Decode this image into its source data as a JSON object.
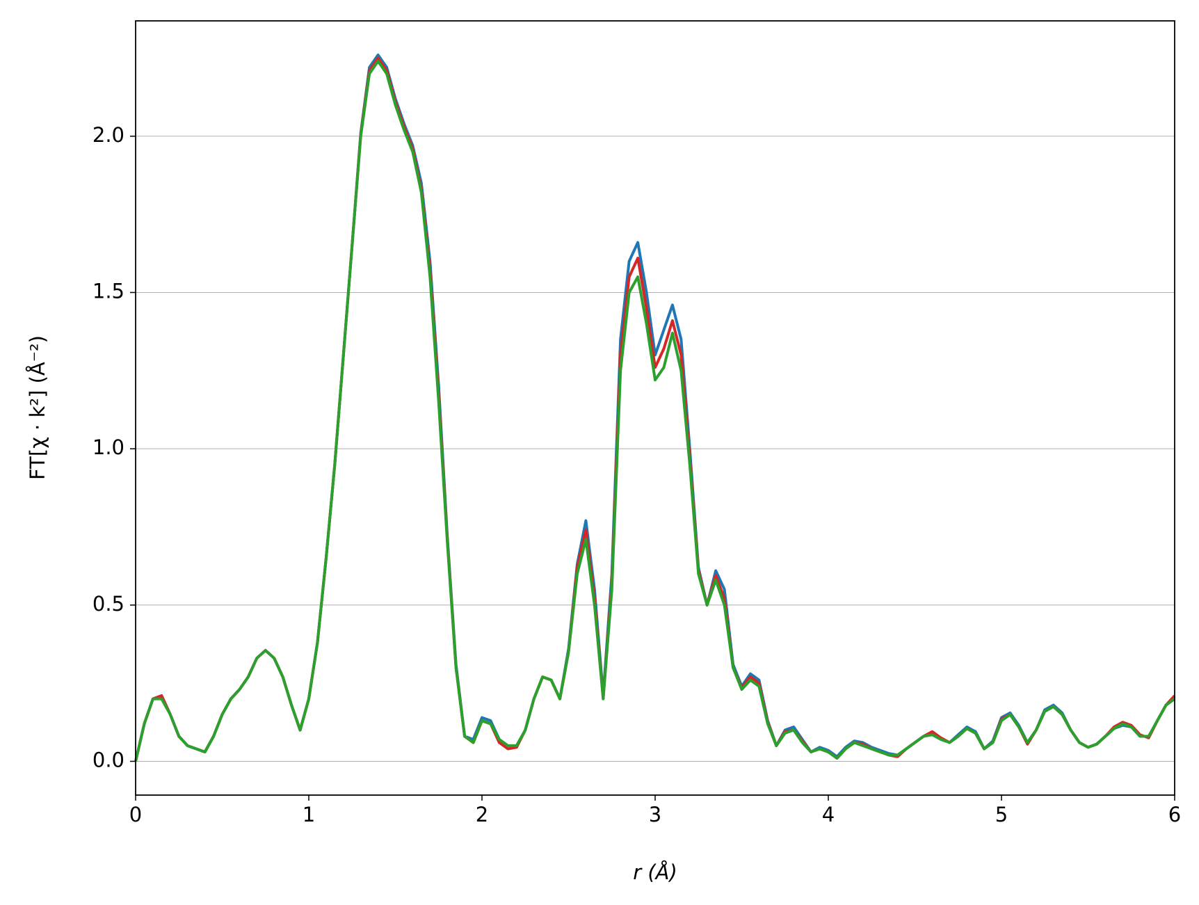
{
  "chart_data": {
    "type": "line",
    "xlabel": "r (Å)",
    "ylabel": "FT[χ · k²] (Å⁻²)",
    "x": [
      0,
      0.05,
      0.1,
      0.15,
      0.2,
      0.25,
      0.3,
      0.35,
      0.4,
      0.45,
      0.5,
      0.55,
      0.6,
      0.65,
      0.7,
      0.75,
      0.8,
      0.85,
      0.9,
      0.95,
      1,
      1.05,
      1.1,
      1.15,
      1.2,
      1.25,
      1.3,
      1.35,
      1.4,
      1.45,
      1.5,
      1.55,
      1.6,
      1.65,
      1.7,
      1.75,
      1.8,
      1.85,
      1.9,
      1.95,
      2,
      2.05,
      2.1,
      2.15,
      2.2,
      2.25,
      2.3,
      2.35,
      2.4,
      2.45,
      2.5,
      2.55,
      2.6,
      2.65,
      2.7,
      2.75,
      2.8,
      2.85,
      2.9,
      2.95,
      3,
      3.05,
      3.1,
      3.15,
      3.2,
      3.25,
      3.3,
      3.35,
      3.4,
      3.45,
      3.5,
      3.55,
      3.6,
      3.65,
      3.7,
      3.75,
      3.8,
      3.85,
      3.9,
      3.95,
      4,
      4.05,
      4.1,
      4.15,
      4.2,
      4.25,
      4.3,
      4.35,
      4.4,
      4.45,
      4.5,
      4.55,
      4.6,
      4.65,
      4.7,
      4.75,
      4.8,
      4.85,
      4.9,
      4.95,
      5,
      5.05,
      5.1,
      5.15,
      5.2,
      5.25,
      5.3,
      5.35,
      5.4,
      5.45,
      5.5,
      5.55,
      5.6,
      5.65,
      5.7,
      5.75,
      5.8,
      5.85,
      5.9,
      5.95,
      6
    ],
    "series": [
      {
        "color": "#1f77b4",
        "values": [
          0,
          0.12,
          0.2,
          0.21,
          0.15,
          0.08,
          0.05,
          0.04,
          0.03,
          0.08,
          0.15,
          0.2,
          0.23,
          0.27,
          0.33,
          0.355,
          0.33,
          0.27,
          0.18,
          0.1,
          0.2,
          0.38,
          0.65,
          0.95,
          1.3,
          1.65,
          2.01,
          2.22,
          2.26,
          2.22,
          2.12,
          2.04,
          1.97,
          1.85,
          1.6,
          1.2,
          0.72,
          0.31,
          0.08,
          0.07,
          0.14,
          0.13,
          0.07,
          0.05,
          0.05,
          0.1,
          0.2,
          0.27,
          0.26,
          0.2,
          0.36,
          0.63,
          0.77,
          0.55,
          0.21,
          0.6,
          1.35,
          1.6,
          1.66,
          1.5,
          1.3,
          1.38,
          1.46,
          1.35,
          1.0,
          0.62,
          0.5,
          0.61,
          0.55,
          0.31,
          0.24,
          0.28,
          0.26,
          0.13,
          0.05,
          0.1,
          0.11,
          0.07,
          0.03,
          0.045,
          0.035,
          0.015,
          0.045,
          0.065,
          0.06,
          0.045,
          0.035,
          0.025,
          0.02,
          0.04,
          0.06,
          0.08,
          0.09,
          0.075,
          0.06,
          0.085,
          0.11,
          0.095,
          0.04,
          0.065,
          0.14,
          0.155,
          0.115,
          0.06,
          0.1,
          0.165,
          0.18,
          0.155,
          0.1,
          0.06,
          0.045,
          0.055,
          0.08,
          0.105,
          0.115,
          0.11,
          0.08,
          0.08,
          0.13,
          0.18,
          0.2
        ]
      },
      {
        "color": "#d62728",
        "values": [
          0,
          0.12,
          0.2,
          0.21,
          0.15,
          0.08,
          0.05,
          0.04,
          0.03,
          0.08,
          0.15,
          0.2,
          0.23,
          0.27,
          0.33,
          0.355,
          0.33,
          0.27,
          0.18,
          0.1,
          0.2,
          0.38,
          0.65,
          0.95,
          1.3,
          1.65,
          2.005,
          2.21,
          2.25,
          2.21,
          2.11,
          2.03,
          1.96,
          1.83,
          1.57,
          1.17,
          0.71,
          0.3,
          0.08,
          0.06,
          0.13,
          0.12,
          0.06,
          0.04,
          0.045,
          0.1,
          0.2,
          0.27,
          0.26,
          0.2,
          0.35,
          0.62,
          0.74,
          0.52,
          0.2,
          0.57,
          1.3,
          1.55,
          1.61,
          1.45,
          1.26,
          1.32,
          1.41,
          1.3,
          0.97,
          0.61,
          0.5,
          0.595,
          0.52,
          0.3,
          0.235,
          0.27,
          0.25,
          0.125,
          0.05,
          0.095,
          0.1,
          0.065,
          0.03,
          0.04,
          0.03,
          0.01,
          0.04,
          0.06,
          0.055,
          0.04,
          0.03,
          0.02,
          0.015,
          0.04,
          0.06,
          0.08,
          0.095,
          0.075,
          0.06,
          0.08,
          0.105,
          0.09,
          0.04,
          0.06,
          0.135,
          0.15,
          0.11,
          0.055,
          0.1,
          0.16,
          0.175,
          0.15,
          0.1,
          0.06,
          0.045,
          0.055,
          0.08,
          0.11,
          0.125,
          0.115,
          0.085,
          0.075,
          0.13,
          0.18,
          0.21
        ]
      },
      {
        "color": "#2ca02c",
        "values": [
          0,
          0.12,
          0.2,
          0.2,
          0.15,
          0.08,
          0.05,
          0.04,
          0.03,
          0.08,
          0.15,
          0.2,
          0.23,
          0.27,
          0.33,
          0.355,
          0.33,
          0.27,
          0.18,
          0.1,
          0.2,
          0.38,
          0.65,
          0.95,
          1.3,
          1.65,
          2.0,
          2.2,
          2.24,
          2.2,
          2.1,
          2.02,
          1.95,
          1.82,
          1.55,
          1.15,
          0.7,
          0.3,
          0.08,
          0.06,
          0.13,
          0.12,
          0.07,
          0.05,
          0.05,
          0.1,
          0.2,
          0.27,
          0.26,
          0.2,
          0.35,
          0.6,
          0.71,
          0.5,
          0.2,
          0.55,
          1.25,
          1.5,
          1.55,
          1.4,
          1.22,
          1.26,
          1.37,
          1.25,
          0.95,
          0.6,
          0.5,
          0.58,
          0.5,
          0.3,
          0.23,
          0.26,
          0.24,
          0.12,
          0.05,
          0.09,
          0.1,
          0.06,
          0.03,
          0.04,
          0.03,
          0.01,
          0.04,
          0.06,
          0.05,
          0.04,
          0.03,
          0.02,
          0.02,
          0.04,
          0.06,
          0.08,
          0.085,
          0.07,
          0.06,
          0.08,
          0.105,
          0.09,
          0.04,
          0.06,
          0.13,
          0.15,
          0.11,
          0.06,
          0.1,
          0.16,
          0.175,
          0.15,
          0.1,
          0.06,
          0.045,
          0.055,
          0.08,
          0.105,
          0.12,
          0.11,
          0.08,
          0.08,
          0.13,
          0.18,
          0.2
        ]
      }
    ],
    "xlim": [
      0,
      6
    ],
    "xticks": [
      0,
      1,
      2,
      3,
      4,
      5,
      6
    ],
    "ylim": [
      -0.108,
      2.369
    ],
    "yticks": [
      {
        "value": 0,
        "label": "0.0"
      },
      0.5,
      {
        "value": 1,
        "label": "1.0"
      },
      1.5,
      {
        "value": 2,
        "label": "2.0"
      }
    ],
    "grid": true
  }
}
